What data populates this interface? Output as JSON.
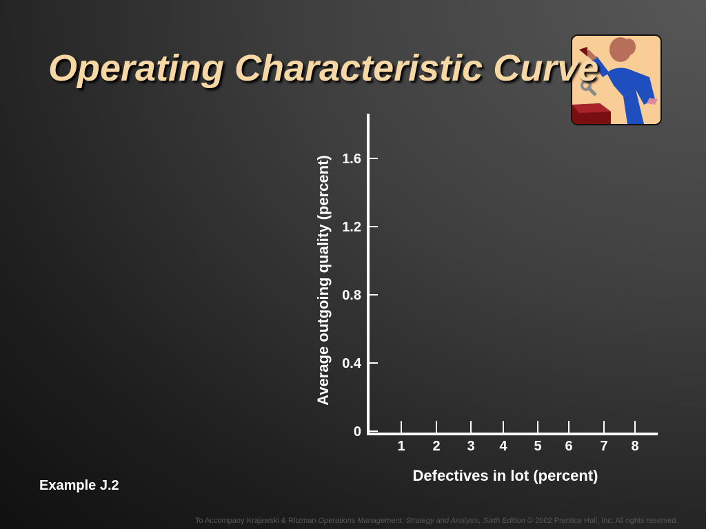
{
  "slide": {
    "title": "Operating Characteristic Curve",
    "example_label": "Example J.2",
    "footer": {
      "prefix": "To Accompany Krajewski & Ritzman",
      "book": "Operations Management: Strategy and Analysis, Sixth Edition",
      "suffix": "© 2002 Prentice Hall, Inc. All rights reserved."
    },
    "colors": {
      "title": "#f7d7a4",
      "axis": "#ffffff",
      "footer": "#5a5a5a"
    },
    "clipart_icon": "worker-with-wrench-icon"
  },
  "chart_data": {
    "type": "line",
    "title": "",
    "xlabel": "Defectives in lot (percent)",
    "ylabel": "Average outgoing quality (percent)",
    "x_ticks": [
      "1",
      "2",
      "3",
      "4",
      "5",
      "6",
      "7",
      "8"
    ],
    "y_ticks": [
      "0",
      "0.4",
      "0.8",
      "1.2",
      "1.6"
    ],
    "xlim": [
      0,
      8
    ],
    "ylim": [
      0,
      1.6
    ],
    "series": [],
    "grid": false,
    "legend": "none"
  }
}
